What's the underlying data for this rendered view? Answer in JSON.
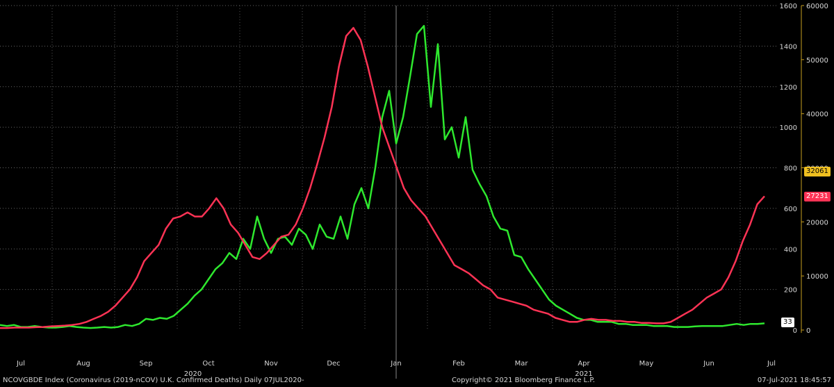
{
  "chart_data": {
    "type": "line",
    "x_labels": [
      "Jul",
      "Aug",
      "Sep",
      "Oct",
      "Nov",
      "Dec",
      "Jan",
      "Feb",
      "Mar",
      "Apr",
      "May",
      "Jun",
      "Jul"
    ],
    "year_labels": [
      "2020",
      "2021"
    ],
    "y_left_ticks": [
      0,
      200,
      400,
      600,
      800,
      1000,
      1200,
      1400,
      1600
    ],
    "y_right_ticks": [
      0,
      10000,
      20000,
      30000,
      40000,
      50000,
      60000
    ],
    "y_left_range": [
      0,
      1600
    ],
    "y_right_range": [
      0,
      60000
    ],
    "last_values": {
      "deaths": "33",
      "cases_yellow": "32061",
      "cases_red": "27231"
    },
    "series": [
      {
        "color": "#2ee82e",
        "axis": "left",
        "values": [
          25,
          20,
          25,
          15,
          15,
          20,
          15,
          12,
          12,
          15,
          20,
          15,
          12,
          10,
          12,
          15,
          12,
          15,
          25,
          20,
          30,
          55,
          50,
          60,
          55,
          70,
          100,
          130,
          170,
          200,
          250,
          300,
          330,
          380,
          350,
          450,
          400,
          560,
          450,
          380,
          450,
          460,
          420,
          500,
          470,
          400,
          520,
          460,
          450,
          560,
          450,
          620,
          700,
          600,
          800,
          1050,
          1180,
          920,
          1050,
          1250,
          1460,
          1500,
          1100,
          1410,
          940,
          1000,
          850,
          1050,
          790,
          720,
          660,
          560,
          500,
          490,
          370,
          360,
          300,
          250,
          200,
          150,
          120,
          100,
          80,
          60,
          50,
          50,
          40,
          40,
          40,
          30,
          30,
          25,
          25,
          25,
          20,
          20,
          20,
          15,
          15,
          15,
          18,
          20,
          20,
          20,
          20,
          25,
          30,
          25,
          30,
          30,
          33
        ]
      },
      {
        "color": "#ff3355",
        "axis": "left",
        "values": [
          10,
          10,
          12,
          12,
          12,
          14,
          15,
          18,
          20,
          22,
          25,
          30,
          40,
          55,
          70,
          90,
          120,
          160,
          200,
          260,
          340,
          380,
          420,
          500,
          550,
          560,
          580,
          560,
          560,
          600,
          650,
          600,
          520,
          480,
          420,
          360,
          350,
          380,
          420,
          460,
          470,
          520,
          600,
          700,
          820,
          950,
          1100,
          1300,
          1450,
          1490,
          1430,
          1300,
          1150,
          1000,
          900,
          800,
          700,
          640,
          600,
          560,
          500,
          440,
          380,
          320,
          300,
          280,
          250,
          220,
          200,
          160,
          150,
          140,
          130,
          120,
          100,
          90,
          80,
          60,
          50,
          40,
          40,
          50,
          55,
          50,
          50,
          45,
          45,
          40,
          40,
          35,
          35,
          33,
          33,
          40,
          60,
          80,
          100,
          130,
          160,
          180,
          200,
          260,
          340,
          440,
          520,
          620,
          660
        ]
      }
    ]
  },
  "footer": {
    "left": "NCOVGBDE Index (Coronavirus (2019-nCOV) U.K. Confirmed Deaths)  Daily 07JUL2020-",
    "center": "Copyright© 2021 Bloomberg Finance L.P.",
    "right": "07-Jul-2021 18:45:57"
  }
}
